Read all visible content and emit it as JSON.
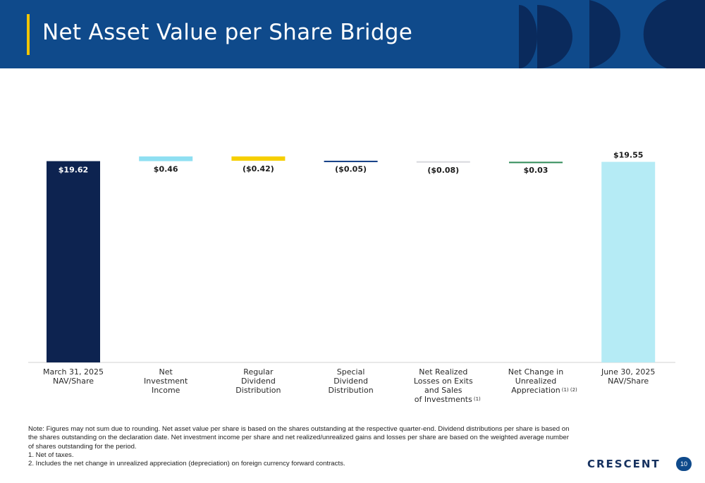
{
  "header": {
    "title": "Net Asset Value per Share Bridge"
  },
  "colors": {
    "header_bg": "#0f4a8b",
    "accent": "#f2c500",
    "decor_dark": "#0a2a5c"
  },
  "chart_data": {
    "type": "bar",
    "subtype": "waterfall",
    "categories": [
      "March 31, 2025 NAV/Share",
      "Net Investment Income",
      "Regular Dividend Distribution",
      "Special Dividend Distribution",
      "Net Realized Losses on Exits and Sales of Investments",
      "Net Change in Unrealized Appreciation",
      "June 30, 2025 NAV/Share"
    ],
    "category_lines": [
      [
        "March 31, 2025",
        "NAV/Share"
      ],
      [
        "Net",
        "Investment",
        "Income"
      ],
      [
        "Regular",
        "Dividend",
        "Distribution"
      ],
      [
        "Special",
        "Dividend",
        "Distribution"
      ],
      [
        "Net Realized",
        "Losses on Exits",
        "and Sales",
        "of Investments"
      ],
      [
        "Net Change in",
        "Unrealized",
        "Appreciation"
      ],
      [
        "June 30, 2025",
        "NAV/Share"
      ]
    ],
    "category_footnotes": [
      "",
      "",
      "",
      "",
      "(1)",
      "(1) (2)",
      ""
    ],
    "values": [
      19.62,
      0.46,
      -0.42,
      -0.05,
      -0.08,
      0.03,
      19.55
    ],
    "kinds": [
      "total",
      "delta",
      "delta",
      "delta",
      "delta",
      "delta",
      "total"
    ],
    "value_labels": [
      "$19.62",
      "$0.46",
      "($0.42)",
      "($0.05)",
      "($0.08)",
      "$0.03",
      "$19.55"
    ],
    "colors": [
      "#0d2350",
      "#8fdff2",
      "#f6cf00",
      "#123e85",
      "#d6d8dc",
      "#2e8b57",
      "#b5ebf5"
    ]
  },
  "notes": {
    "main": "Note: Figures may not sum due to rounding. Net asset value per share is based on the shares outstanding at the respective quarter-end. Dividend distributions per share is based on the shares outstanding on the declaration date. Net investment income per share and net realized/unrealized gains and losses per share are based on the weighted average number of shares outstanding for the period.",
    "footnote_1": "1.  Net of taxes.",
    "footnote_2": "2.  Includes the net change in unrealized appreciation (depreciation) on foreign currency forward contracts."
  },
  "footer": {
    "logo": "CRESCENT",
    "page_number": "10"
  }
}
